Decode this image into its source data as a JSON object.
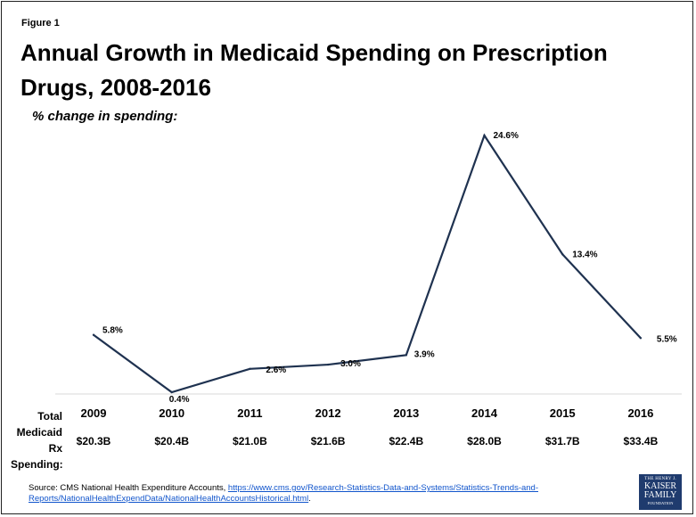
{
  "figure_label": "Figure 1",
  "title": "Annual Growth in Medicaid Spending on Prescription Drugs, 2008-2016",
  "subtitle": "% change in spending:",
  "row_header": [
    "Total",
    "Medicaid",
    "Rx",
    "Spending:"
  ],
  "source": {
    "prefix": "Source: CMS National Health Expenditure Accounts, ",
    "link": "https://www.cms.gov/Research-Statistics-Data-and-Systems/Statistics-Trends-and-Reports/NationalHealthExpendData/NationalHealthAccountsHistorical.html",
    "suffix": "."
  },
  "logo": {
    "line1": "THE HENRY J.",
    "line2a": "KAISER",
    "line2b": "FAMILY",
    "line3": "FOUNDATION"
  },
  "colors": {
    "line": "#1f3250",
    "axis": "#d9d9d9"
  },
  "chart_data": {
    "type": "line",
    "categories": [
      "2009",
      "2010",
      "2011",
      "2012",
      "2013",
      "2014",
      "2015",
      "2016"
    ],
    "values": [
      5.8,
      0.4,
      2.6,
      3.0,
      3.9,
      24.6,
      13.4,
      5.5
    ],
    "data_labels": [
      "5.8%",
      "0.4%",
      "2.6%",
      "3.0%",
      "3.9%",
      "24.6%",
      "13.4%",
      "5.5%"
    ],
    "spending": [
      "$20.3B",
      "$20.4B",
      "$21.0B",
      "$21.6B",
      "$22.4B",
      "$28.0B",
      "$31.7B",
      "$33.4B"
    ],
    "ylim": [
      0,
      25
    ],
    "grid": false,
    "legend": "none"
  }
}
